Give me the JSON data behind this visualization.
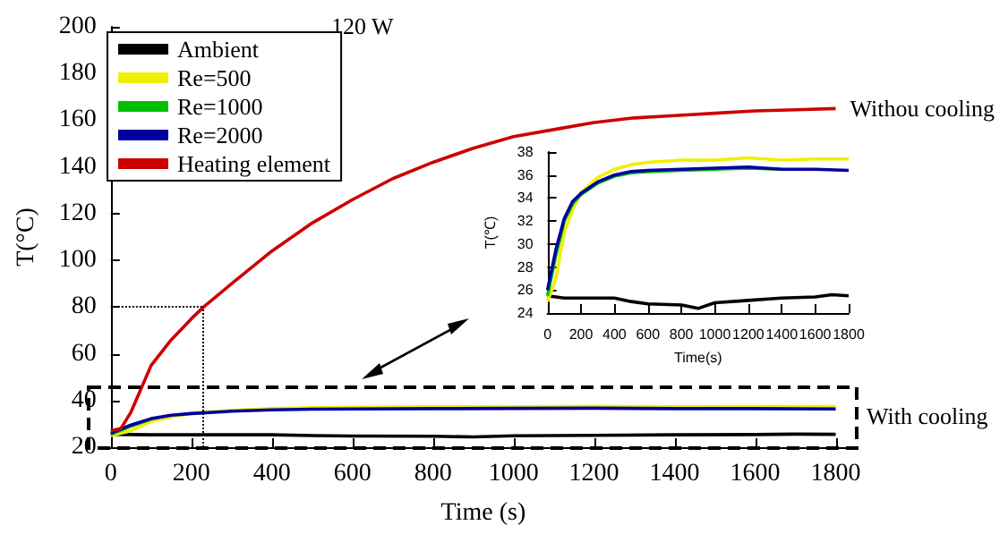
{
  "chart_data": [
    {
      "type": "line",
      "xlabel": "Time (s)",
      "ylabel": "T(°C)",
      "xlim": [
        0,
        1850
      ],
      "ylim": [
        20,
        200
      ],
      "xticks": [
        0,
        200,
        400,
        600,
        800,
        1000,
        1200,
        1400,
        1600,
        1800
      ],
      "yticks": [
        20,
        40,
        60,
        80,
        100,
        120,
        140,
        160,
        180,
        200
      ],
      "grid": false,
      "legend": "top left",
      "marker": "none",
      "line_style": "solid",
      "annotations": [
        "120 W",
        "With cooling",
        {
          "text": "Withou cooling",
          "x": 1800,
          "y": 165
        }
      ],
      "ref_lines": [
        {
          "axis": "x",
          "value": 230,
          "line_style": "dotted"
        },
        {
          "axis": "y",
          "value": 80,
          "line_style": "dotted"
        }
      ],
      "series": [
        {
          "name": "Ambient",
          "color": "#000000",
          "x": [
            0,
            100,
            200,
            400,
            500,
            600,
            800,
            900,
            1000,
            1200,
            1400,
            1600,
            1700,
            1800
          ],
          "values": [
            25.5,
            25.3,
            25.3,
            25.3,
            25.0,
            24.8,
            24.7,
            24.4,
            24.9,
            25.1,
            25.3,
            25.4,
            25.6,
            25.5
          ]
        },
        {
          "name": "Re=500",
          "color": "#f0f000",
          "x": [
            0,
            50,
            100,
            150,
            200,
            300,
            400,
            500,
            600,
            800,
            1000,
            1200,
            1400,
            1600,
            1800
          ],
          "values": [
            25,
            27,
            31,
            33,
            34.5,
            35.8,
            36.5,
            36.9,
            37.1,
            37.3,
            37.3,
            37.5,
            37.3,
            37.4,
            37.4
          ]
        },
        {
          "name": "Re=1000",
          "color": "#00c000",
          "x": [
            0,
            50,
            100
          ],
          "values": [
            25.5,
            29,
            32
          ]
        },
        {
          "name": "Re=2000",
          "color": "#0000a0",
          "x": [
            0,
            50,
            100,
            150,
            200,
            300,
            400,
            500,
            600,
            800,
            1000,
            1200,
            1400,
            1600,
            1800
          ],
          "values": [
            26,
            29.5,
            32.2,
            33.7,
            34.4,
            35.4,
            36,
            36.3,
            36.4,
            36.5,
            36.6,
            36.7,
            36.5,
            36.5,
            36.4
          ]
        },
        {
          "name": "Heating element",
          "color": "#cc0000",
          "x": [
            0,
            25,
            50,
            75,
            100,
            150,
            200,
            230,
            300,
            400,
            500,
            600,
            700,
            800,
            900,
            1000,
            1100,
            1200,
            1300,
            1400,
            1500,
            1600,
            1700,
            1800
          ],
          "values": [
            27,
            28,
            35,
            45,
            55,
            66,
            75,
            80,
            90,
            104,
            116,
            126,
            135,
            142,
            148,
            153,
            156,
            159,
            161,
            162,
            163,
            164,
            164.5,
            165
          ]
        }
      ]
    },
    {
      "type": "line",
      "xlabel": "Time(s)",
      "ylabel": "T(℃)",
      "xlim": [
        0,
        1800
      ],
      "ylim": [
        24,
        38
      ],
      "xticks": [
        0,
        200,
        400,
        600,
        800,
        1000,
        1200,
        1400,
        1600,
        1800
      ],
      "yticks": [
        24,
        26,
        28,
        30,
        32,
        34,
        36,
        38
      ],
      "grid": false,
      "legend": false,
      "marker": "none",
      "line_style": "solid",
      "series": [
        {
          "color": "#000000",
          "x": [
            0,
            100,
            200,
            400,
            500,
            600,
            800,
            900,
            1000,
            1200,
            1400,
            1600,
            1700,
            1800
          ],
          "values": [
            25.5,
            25.3,
            25.3,
            25.3,
            25.0,
            24.8,
            24.7,
            24.4,
            24.9,
            25.1,
            25.3,
            25.4,
            25.6,
            25.5
          ]
        },
        {
          "color": "#f0f000",
          "x": [
            0,
            50,
            100,
            150,
            200,
            300,
            400,
            500,
            600,
            800,
            1000,
            1200,
            1400,
            1600,
            1800
          ],
          "values": [
            25,
            27,
            31,
            33,
            34.5,
            35.8,
            36.5,
            36.9,
            37.1,
            37.3,
            37.3,
            37.5,
            37.3,
            37.4,
            37.4
          ]
        },
        {
          "color": "#00c000",
          "x": [
            0,
            50,
            100,
            150,
            200,
            300,
            400,
            500,
            600,
            800,
            1000,
            1200,
            1400
          ],
          "values": [
            25.5,
            29,
            32,
            33.5,
            34.3,
            35.3,
            35.9,
            36.2,
            36.3,
            36.4,
            36.5,
            36.6,
            36.5
          ]
        },
        {
          "color": "#0000a0",
          "x": [
            0,
            50,
            100,
            150,
            200,
            300,
            400,
            500,
            600,
            800,
            1000,
            1200,
            1400,
            1600,
            1800
          ],
          "values": [
            26,
            29.5,
            32.2,
            33.7,
            34.4,
            35.4,
            36,
            36.3,
            36.4,
            36.5,
            36.6,
            36.7,
            36.5,
            36.5,
            36.4
          ]
        }
      ]
    }
  ]
}
